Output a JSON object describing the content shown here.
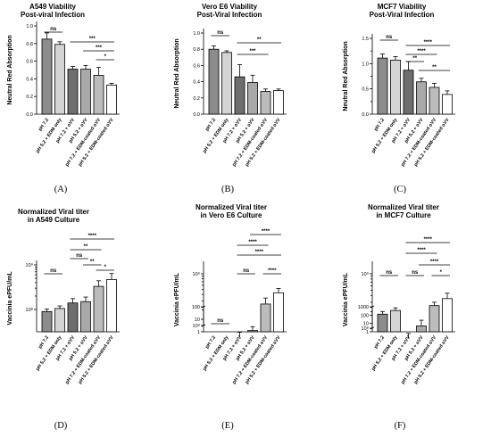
{
  "categories": [
    "pH 7.2",
    "pH 5.2 + EDM only",
    "pH 7.2 + oVV",
    "pH 5.2 + oVV",
    "pH 7.2 + EDM-coated oVV",
    "pH 5.2 + EDM-coated oVV"
  ],
  "colors": {
    "bars": [
      "#8c8c8c",
      "#d4d4d4",
      "#6e6e6e",
      "#a9a9a9",
      "#bcbcbc",
      "#ffffff"
    ],
    "stroke": "#000000"
  },
  "chart_data": [
    {
      "type": "bar",
      "panel": "(A)",
      "title": [
        "A549 Viability",
        "Post-viral Infection"
      ],
      "ylabel": "Neutral Red Absorption",
      "scale": "linear",
      "ylim": [
        0,
        1.0
      ],
      "yticks": [
        0.0,
        0.2,
        0.4,
        0.6,
        0.8,
        1.0
      ],
      "ytick_labels": [
        "0.0",
        "0.2",
        "0.4",
        "0.6",
        "0.8",
        "1.0"
      ],
      "values": [
        0.85,
        0.79,
        0.51,
        0.51,
        0.44,
        0.33
      ],
      "errors": [
        0.07,
        0.03,
        0.03,
        0.04,
        0.09,
        0.02
      ],
      "comparisons": [
        {
          "from": 0,
          "to": 1,
          "label": "ns"
        },
        {
          "from": 2,
          "to": 5,
          "label": "***"
        },
        {
          "from": 3,
          "to": 5,
          "label": "***"
        },
        {
          "from": 4,
          "to": 5,
          "label": "*"
        }
      ]
    },
    {
      "type": "bar",
      "panel": "(B)",
      "title": [
        "Vero E6 Viability",
        "Post-Viral Infection"
      ],
      "ylabel": "Neutral Red Absorption",
      "scale": "linear",
      "ylim": [
        0,
        1.0
      ],
      "yticks": [
        0.0,
        0.2,
        0.4,
        0.6,
        0.8,
        1.0
      ],
      "ytick_labels": [
        "0.0",
        "0.2",
        "0.4",
        "0.6",
        "0.8",
        "1.0"
      ],
      "values": [
        0.8,
        0.76,
        0.46,
        0.39,
        0.28,
        0.29
      ],
      "errors": [
        0.04,
        0.02,
        0.15,
        0.09,
        0.03,
        0.02
      ],
      "comparisons": [
        {
          "from": 0,
          "to": 1,
          "label": "ns"
        },
        {
          "from": 2,
          "to": 5,
          "label": "**"
        },
        {
          "from": 2,
          "to": 4,
          "label": "***"
        }
      ]
    },
    {
      "type": "bar",
      "panel": "(C)",
      "title": [
        "MCF7 Viability",
        "Post-Viral Infection"
      ],
      "ylabel": "Neutral Red Absorption",
      "scale": "linear",
      "ylim": [
        0,
        1.5
      ],
      "yticks": [
        0.0,
        0.5,
        1.0,
        1.5
      ],
      "ytick_labels": [
        "0.0",
        "0.5",
        "1.0",
        "1.5"
      ],
      "minor_ticks": [
        0.25,
        0.75,
        1.25
      ],
      "values": [
        1.11,
        1.07,
        0.87,
        0.64,
        0.53,
        0.39
      ],
      "errors": [
        0.08,
        0.07,
        0.17,
        0.07,
        0.08,
        0.07
      ],
      "comparisons": [
        {
          "from": 0,
          "to": 1,
          "label": "ns"
        },
        {
          "from": 2,
          "to": 5,
          "label": "****"
        },
        {
          "from": 2,
          "to": 4,
          "label": "****"
        },
        {
          "from": 2,
          "to": 3,
          "label": "**"
        },
        {
          "from": 3,
          "to": 5,
          "label": "**"
        }
      ]
    },
    {
      "type": "bar",
      "panel": "(D)",
      "title": [
        "Normalized Viral titer",
        "in A549 Culture"
      ],
      "ylabel": "Vaccinia ePFU/mL",
      "scale": "log",
      "yticks": [
        100000000,
        1000000000
      ],
      "ytick_labels": [
        "10⁸",
        "10⁹"
      ],
      "values": [
        90000000,
        105000000,
        140000000,
        150000000,
        330000000,
        470000000
      ],
      "errors_low": [
        80000000,
        92000000,
        115000000,
        123000000,
        250000000,
        345000000
      ],
      "errors_high": [
        102000000,
        120000000,
        175000000,
        190000000,
        440000000,
        640000000
      ],
      "comparisons": [
        {
          "from": 0,
          "to": 1,
          "label": "ns"
        },
        {
          "from": 2,
          "to": 3,
          "label": "ns"
        },
        {
          "from": 3,
          "to": 4,
          "label": "**"
        },
        {
          "from": 4,
          "to": 5,
          "label": "*"
        },
        {
          "from": 2,
          "to": 4,
          "label": "**"
        },
        {
          "from": 2,
          "to": 5,
          "label": "****"
        }
      ]
    },
    {
      "type": "bar",
      "panel": "(E)",
      "title": [
        "Normalized Viral titer",
        "in Vero E6 Culture"
      ],
      "ylabel": "Vaccinia ePFU/mL",
      "scale": "broken-log",
      "lower_ticks": [
        1,
        10,
        100
      ],
      "lower_tick_labels": [
        "1",
        "10",
        "100"
      ],
      "upper_ticks": [
        100000000,
        1000000000
      ],
      "upper_tick_labels": [
        "10⁸",
        "10⁹"
      ],
      "values": [
        0,
        0,
        60000000,
        80000000,
        260000000,
        430000000
      ],
      "errors_low": [
        0,
        0,
        50000000,
        66000000,
        200000000,
        350000000
      ],
      "errors_high": [
        0,
        0,
        74000000,
        95000000,
        340000000,
        520000000
      ],
      "comparisons": [
        {
          "from": 0,
          "to": 1,
          "label": "ns"
        },
        {
          "from": 2,
          "to": 3,
          "label": "ns"
        },
        {
          "from": 4,
          "to": 5,
          "label": "****"
        },
        {
          "from": 2,
          "to": 5,
          "label": "****"
        },
        {
          "from": 2,
          "to": 4,
          "label": "****"
        },
        {
          "from": 3,
          "to": 5,
          "label": "****"
        }
      ]
    },
    {
      "type": "bar",
      "panel": "(F)",
      "title": [
        "Normalized Viral titer",
        "in MCF7 Culture"
      ],
      "ylabel": "Vaccinia ePFU/mL",
      "scale": "broken-log",
      "lower_ticks": [
        1,
        10,
        100,
        1000
      ],
      "lower_tick_labels": [
        "1",
        "10",
        "100",
        "1000"
      ],
      "upper_ticks": [
        100000000,
        1000000000
      ],
      "upper_tick_labels": [
        "10⁸",
        "10⁹"
      ],
      "values": [
        130,
        360,
        65000000,
        110000000,
        260000000,
        350000000
      ],
      "errors_low": [
        60,
        170,
        54000000,
        92000000,
        225000000,
        290000000
      ],
      "errors_high": [
        270,
        750,
        80000000,
        140000000,
        300000000,
        440000000
      ],
      "comparisons": [
        {
          "from": 0,
          "to": 1,
          "label": "ns"
        },
        {
          "from": 2,
          "to": 3,
          "label": "ns"
        },
        {
          "from": 4,
          "to": 5,
          "label": "*"
        },
        {
          "from": 3,
          "to": 5,
          "label": "****"
        },
        {
          "from": 2,
          "to": 4,
          "label": "****"
        },
        {
          "from": 2,
          "to": 5,
          "label": "****"
        }
      ]
    }
  ]
}
